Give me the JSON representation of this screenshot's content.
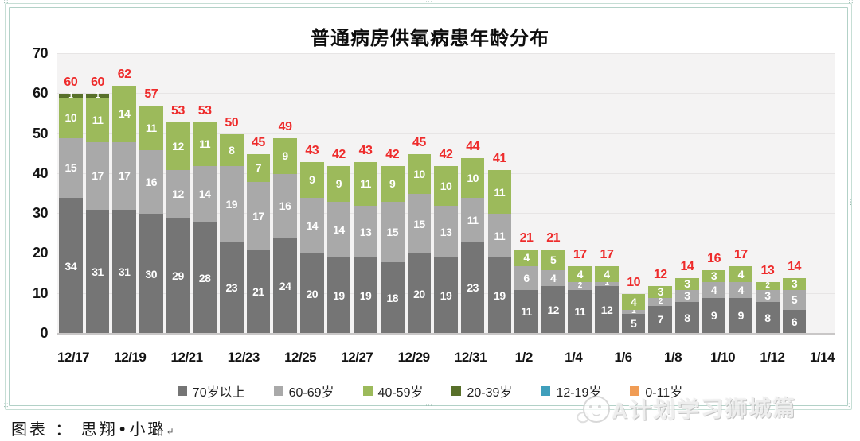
{
  "title": "普通病房供氧病患年龄分布",
  "caption": {
    "text": "图表 ： 思翔•小璐",
    "return_mark": "↵"
  },
  "watermark": {
    "text": "A计划学习狮城篇"
  },
  "colors": {
    "total_label": "#ee2b2b",
    "plot_background": "#f4f3f3",
    "gridline": "#e7e5e5",
    "frame": "#b2d1c7"
  },
  "chart_data": {
    "type": "bar",
    "stacked": true,
    "title": "普通病房供氧病患年龄分布",
    "xlabel": "",
    "ylabel": "",
    "ylim": [
      0,
      70
    ],
    "yticks": [
      0,
      10,
      20,
      30,
      40,
      50,
      60,
      70
    ],
    "grid": true,
    "legend_position": "bottom",
    "categories": [
      "12/17",
      "12/18",
      "12/19",
      "12/20",
      "12/21",
      "12/22",
      "12/23",
      "12/24",
      "12/25",
      "12/26",
      "12/27",
      "12/28",
      "12/29",
      "12/30",
      "12/31",
      "1/1",
      "1/2",
      "1/3",
      "1/4",
      "1/5",
      "1/6",
      "1/7",
      "1/8",
      "1/9",
      "1/10",
      "1/11",
      "1/12",
      "1/13",
      "1/14"
    ],
    "x_tick_labels": [
      "12/17",
      "12/19",
      "12/21",
      "12/23",
      "12/25",
      "12/27",
      "12/29",
      "12/31",
      "1/2",
      "1/4",
      "1/6",
      "1/8",
      "1/10",
      "1/12",
      "1/14"
    ],
    "series": [
      {
        "name": "70岁以上",
        "color": "#757575",
        "values": [
          34,
          31,
          31,
          30,
          29,
          28,
          23,
          21,
          24,
          20,
          19,
          19,
          18,
          20,
          19,
          23,
          19,
          11,
          12,
          11,
          12,
          5,
          7,
          8,
          9,
          9,
          8,
          6,
          null
        ]
      },
      {
        "name": "60-69岁",
        "color": "#a9a9a9",
        "values": [
          15,
          17,
          17,
          16,
          12,
          14,
          19,
          17,
          16,
          14,
          14,
          13,
          15,
          15,
          13,
          11,
          11,
          6,
          4,
          2,
          1,
          1,
          2,
          3,
          4,
          4,
          3,
          5,
          null
        ]
      },
      {
        "name": "40-59岁",
        "color": "#9cba5b",
        "values": [
          10,
          11,
          14,
          11,
          12,
          11,
          8,
          7,
          9,
          9,
          9,
          11,
          9,
          10,
          10,
          10,
          11,
          4,
          5,
          4,
          4,
          4,
          3,
          3,
          3,
          4,
          2,
          3,
          null
        ]
      },
      {
        "name": "20-39岁",
        "color": "#58702a",
        "values": [
          1,
          1,
          0,
          0,
          0,
          0,
          0,
          0,
          0,
          0,
          0,
          0,
          0,
          0,
          0,
          0,
          0,
          0,
          0,
          0,
          0,
          0,
          0,
          0,
          0,
          0,
          0,
          0,
          null
        ]
      },
      {
        "name": "12-19岁",
        "color": "#3f9fbc",
        "values": [
          0,
          0,
          0,
          0,
          0,
          0,
          0,
          0,
          0,
          0,
          0,
          0,
          0,
          0,
          0,
          0,
          0,
          0,
          0,
          0,
          0,
          0,
          0,
          0,
          0,
          0,
          0,
          0,
          null
        ]
      },
      {
        "name": "0-11岁",
        "color": "#f09c55",
        "values": [
          0,
          0,
          0,
          0,
          0,
          0,
          0,
          0,
          0,
          0,
          0,
          0,
          0,
          0,
          0,
          0,
          0,
          0,
          0,
          0,
          0,
          0,
          0,
          0,
          0,
          0,
          0,
          0,
          null
        ]
      }
    ],
    "totals": [
      60,
      60,
      62,
      57,
      53,
      53,
      50,
      45,
      49,
      43,
      42,
      43,
      42,
      45,
      42,
      44,
      41,
      21,
      21,
      17,
      17,
      10,
      12,
      14,
      16,
      17,
      13,
      14,
      null
    ]
  }
}
